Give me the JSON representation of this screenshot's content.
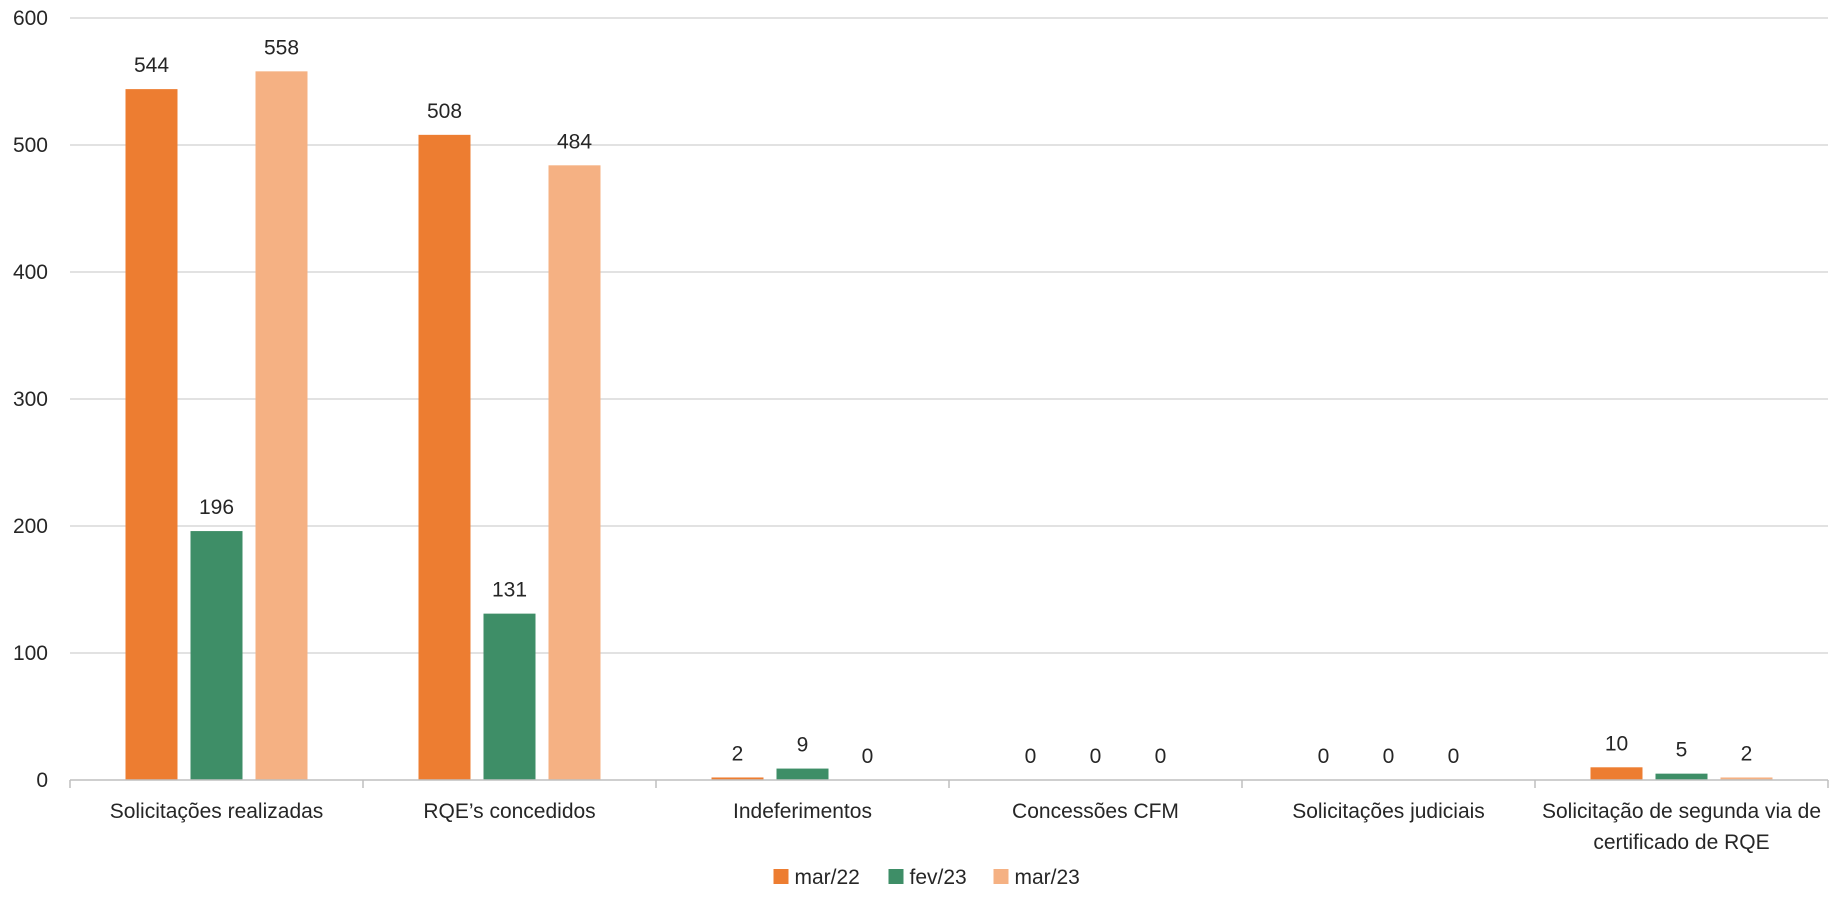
{
  "chart_data": {
    "type": "bar",
    "title": "",
    "xlabel": "",
    "ylabel": "",
    "ylim": [
      0,
      600
    ],
    "yticks": [
      0,
      100,
      200,
      300,
      400,
      500,
      600
    ],
    "grid": true,
    "legend_position": "bottom",
    "categories": [
      [
        "Solicitações realizadas"
      ],
      [
        "RQE’s concedidos"
      ],
      [
        "Indeferimentos"
      ],
      [
        "Concessões CFM"
      ],
      [
        "Solicitações judiciais"
      ],
      [
        "Solicitação de segunda via de",
        "certificado de RQE"
      ]
    ],
    "series": [
      {
        "name": "mar/22",
        "color": "#ed7d31",
        "values": [
          544,
          508,
          2,
          0,
          0,
          10
        ]
      },
      {
        "name": "fev/23",
        "color": "#3e8e67",
        "values": [
          196,
          131,
          9,
          0,
          0,
          5
        ]
      },
      {
        "name": "mar/23",
        "color": "#f5b183",
        "values": [
          558,
          484,
          0,
          0,
          0,
          2
        ]
      }
    ]
  }
}
